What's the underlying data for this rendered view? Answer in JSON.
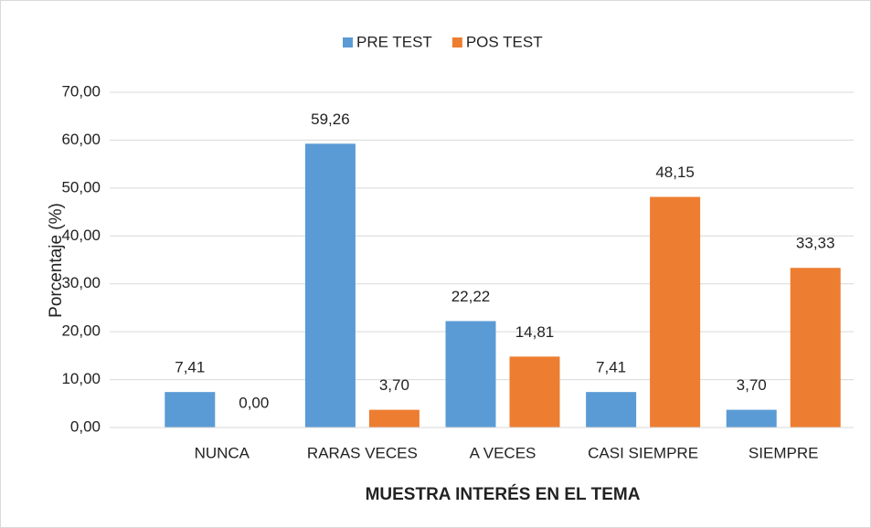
{
  "chart_data": {
    "type": "bar",
    "x_label": "MUESTRA INTERÉS EN EL TEMA",
    "y_label": "Porcentaje (%)",
    "categories": [
      "NUNCA",
      "RARAS VECES",
      "A VECES",
      "CASI SIEMPRE",
      "SIEMPRE"
    ],
    "series": [
      {
        "name": "PRE TEST",
        "color": "#5b9bd5",
        "values": [
          7.41,
          59.26,
          22.22,
          7.41,
          3.7
        ],
        "value_labels": [
          "7,41",
          "59,26",
          "22,22",
          "7,41",
          "3,70"
        ]
      },
      {
        "name": "POS TEST",
        "color": "#ed7d31",
        "values": [
          0.0,
          3.7,
          14.81,
          48.15,
          33.33
        ],
        "value_labels": [
          "0,00",
          "3,70",
          "14,81",
          "48,15",
          "33,33"
        ]
      }
    ],
    "ylim": [
      0,
      70
    ],
    "yticks": [
      {
        "value": 0,
        "label": "0,00"
      },
      {
        "value": 10,
        "label": "10,00"
      },
      {
        "value": 20,
        "label": "20,00"
      },
      {
        "value": 30,
        "label": "30,00"
      },
      {
        "value": 40,
        "label": "40,00"
      },
      {
        "value": 50,
        "label": "50,00"
      },
      {
        "value": 60,
        "label": "60,00"
      },
      {
        "value": 70,
        "label": "70,00"
      }
    ],
    "grid": true,
    "legend": "top"
  }
}
